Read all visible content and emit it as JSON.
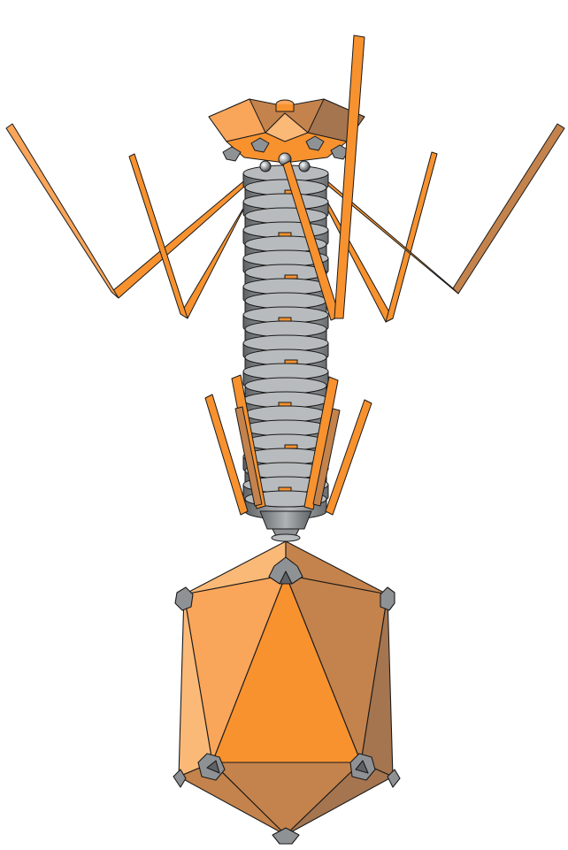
{
  "image": {
    "subject": "bacteriophage-illustration",
    "background": "#ffffff"
  },
  "palette": {
    "orange": "#f7922f",
    "orange_light": "#f9a55a",
    "orange_pale": "#fbb978",
    "orange_dark": "#c4834c",
    "orange_shadow": "#a57550",
    "gray": "#8f9295",
    "gray_dark": "#5f6366",
    "gray_light": "#b8bbbd",
    "outline": "#1a1a1a"
  }
}
